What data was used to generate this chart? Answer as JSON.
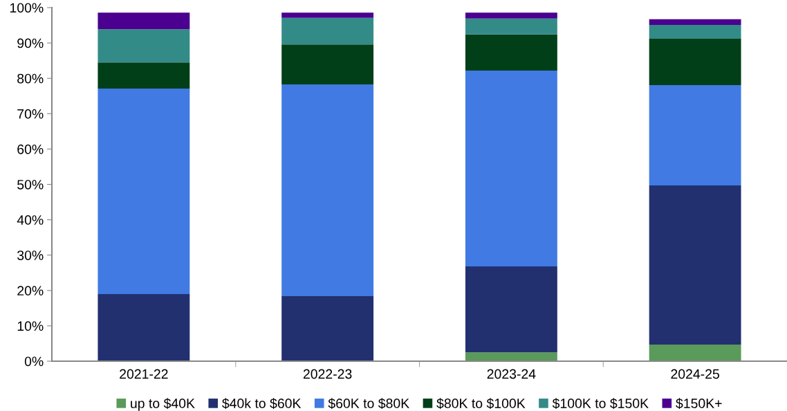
{
  "chart_data": {
    "type": "bar",
    "stacked": true,
    "categories": [
      "2021-22",
      "2022-23",
      "2023-24",
      "2024-25"
    ],
    "series": [
      {
        "name": "up to $40K",
        "color": "#5a9a5a",
        "values": [
          0,
          0,
          2.5,
          4.7
        ]
      },
      {
        "name": "$40k to $60K",
        "color": "#223070",
        "values": [
          19,
          18.4,
          24.3,
          45
        ]
      },
      {
        "name": "$60K to $80K",
        "color": "#407ae2",
        "values": [
          58.1,
          59.9,
          55.4,
          28.4
        ]
      },
      {
        "name": "$80K to $100K",
        "color": "#003f18",
        "values": [
          7.4,
          11.3,
          10.2,
          13.1
        ]
      },
      {
        "name": "$100K to $150K",
        "color": "#338b88",
        "values": [
          9.4,
          7.5,
          4.5,
          3.9
        ]
      },
      {
        "name": "$150K+",
        "color": "#4b0090",
        "values": [
          4.7,
          1.5,
          1.7,
          1.6
        ]
      }
    ],
    "ylim": [
      0,
      100
    ],
    "yticks": [
      {
        "value": 0,
        "label": "0%"
      },
      {
        "value": 10,
        "label": "10%"
      },
      {
        "value": 20,
        "label": "20%"
      },
      {
        "value": 30,
        "label": "30%"
      },
      {
        "value": 40,
        "label": "40%"
      },
      {
        "value": 50,
        "label": "50%"
      },
      {
        "value": 60,
        "label": "60%"
      },
      {
        "value": 70,
        "label": "70%"
      },
      {
        "value": 80,
        "label": "80%"
      },
      {
        "value": 90,
        "label": "90%"
      },
      {
        "value": 100,
        "label": "100%"
      }
    ],
    "grid": false,
    "legend": "bottom"
  }
}
